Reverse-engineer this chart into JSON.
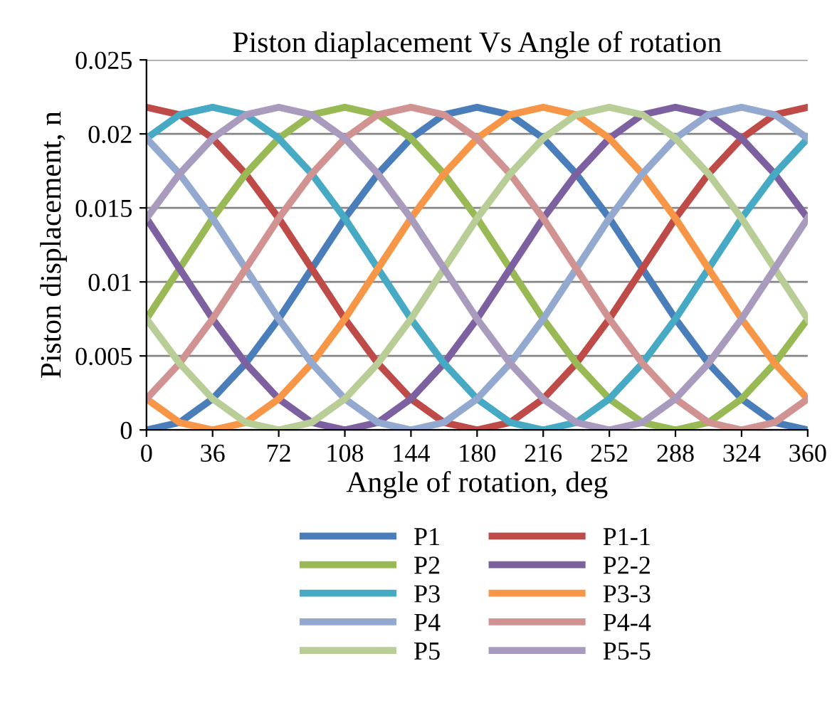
{
  "chart_data": {
    "type": "line",
    "title": "Piston diaplacement Vs Angle of rotation",
    "xlabel": "Angle of rotation, deg",
    "ylabel": "Piston displacement, n",
    "x": [
      0,
      18,
      36,
      54,
      72,
      90,
      108,
      126,
      144,
      162,
      180,
      198,
      216,
      234,
      252,
      270,
      288,
      306,
      324,
      342,
      360
    ],
    "xlim": [
      0,
      360
    ],
    "xticks": [
      0,
      36,
      72,
      108,
      144,
      180,
      216,
      252,
      288,
      324,
      360
    ],
    "ylim": [
      0,
      0.025
    ],
    "yticks": [
      0,
      0.005,
      0.01,
      0.015,
      0.02,
      0.025
    ],
    "grid": "y",
    "legend": "bottom",
    "marker": "none",
    "line_style": "solid",
    "series": [
      {
        "name": "P1",
        "color": "#4a7ebb",
        "values": [
          0,
          0.0005,
          0.0021,
          0.0045,
          0.0075,
          0.0109,
          0.0143,
          0.0173,
          0.0197,
          0.0213,
          0.0218,
          0.0213,
          0.0197,
          0.0173,
          0.0143,
          0.0109,
          0.0075,
          0.0045,
          0.0021,
          0.0005,
          0
        ]
      },
      {
        "name": "P1-1",
        "color": "#be4b48",
        "values": [
          0.0218,
          0.0213,
          0.0197,
          0.0173,
          0.0143,
          0.0109,
          0.0075,
          0.0045,
          0.0021,
          0.0005,
          0,
          0.0005,
          0.0021,
          0.0045,
          0.0075,
          0.0109,
          0.0143,
          0.0173,
          0.0197,
          0.0213,
          0.0218
        ]
      },
      {
        "name": "P2",
        "color": "#98b954",
        "values": [
          0.0075,
          0.0109,
          0.0143,
          0.0173,
          0.0197,
          0.0213,
          0.0218,
          0.0213,
          0.0197,
          0.0173,
          0.0143,
          0.0109,
          0.0075,
          0.0045,
          0.0021,
          0.0005,
          0,
          0.0005,
          0.0021,
          0.0045,
          0.0075
        ]
      },
      {
        "name": "P2-2",
        "color": "#7d60a0",
        "values": [
          0.0143,
          0.0109,
          0.0075,
          0.0045,
          0.0021,
          0.0005,
          0,
          0.0005,
          0.0021,
          0.0045,
          0.0075,
          0.0109,
          0.0143,
          0.0173,
          0.0197,
          0.0213,
          0.0218,
          0.0213,
          0.0197,
          0.0173,
          0.0143
        ]
      },
      {
        "name": "P3",
        "color": "#46aac5",
        "values": [
          0.0197,
          0.0213,
          0.0218,
          0.0213,
          0.0197,
          0.0173,
          0.0143,
          0.0109,
          0.0075,
          0.0045,
          0.0021,
          0.0005,
          0,
          0.0005,
          0.0021,
          0.0045,
          0.0075,
          0.0109,
          0.0143,
          0.0173,
          0.0197
        ]
      },
      {
        "name": "P3-3",
        "color": "#f79646",
        "values": [
          0.0021,
          0.0005,
          0,
          0.0005,
          0.0021,
          0.0045,
          0.0075,
          0.0109,
          0.0143,
          0.0173,
          0.0197,
          0.0213,
          0.0218,
          0.0213,
          0.0197,
          0.0173,
          0.0143,
          0.0109,
          0.0075,
          0.0045,
          0.0021
        ]
      },
      {
        "name": "P4",
        "color": "#93a9cf",
        "values": [
          0.0197,
          0.0173,
          0.0143,
          0.0109,
          0.0075,
          0.0045,
          0.0021,
          0.0005,
          0,
          0.0005,
          0.0021,
          0.0045,
          0.0075,
          0.0109,
          0.0143,
          0.0173,
          0.0197,
          0.0213,
          0.0218,
          0.0213,
          0.0197
        ]
      },
      {
        "name": "P4-4",
        "color": "#d19392",
        "values": [
          0.0021,
          0.0045,
          0.0075,
          0.0109,
          0.0143,
          0.0173,
          0.0197,
          0.0213,
          0.0218,
          0.0213,
          0.0197,
          0.0173,
          0.0143,
          0.0109,
          0.0075,
          0.0045,
          0.0021,
          0.0005,
          0,
          0.0005,
          0.0021
        ]
      },
      {
        "name": "P5",
        "color": "#b9cd96",
        "values": [
          0.0075,
          0.0045,
          0.0021,
          0.0005,
          0,
          0.0005,
          0.0021,
          0.0045,
          0.0075,
          0.0109,
          0.0143,
          0.0173,
          0.0197,
          0.0213,
          0.0218,
          0.0213,
          0.0197,
          0.0173,
          0.0143,
          0.0109,
          0.0075
        ]
      },
      {
        "name": "P5-5",
        "color": "#a99bbd",
        "values": [
          0.0143,
          0.0173,
          0.0197,
          0.0213,
          0.0218,
          0.0213,
          0.0197,
          0.0173,
          0.0143,
          0.0109,
          0.0075,
          0.0045,
          0.0021,
          0.0005,
          0,
          0.0005,
          0.0021,
          0.0045,
          0.0075,
          0.0109,
          0.0143
        ]
      }
    ]
  }
}
